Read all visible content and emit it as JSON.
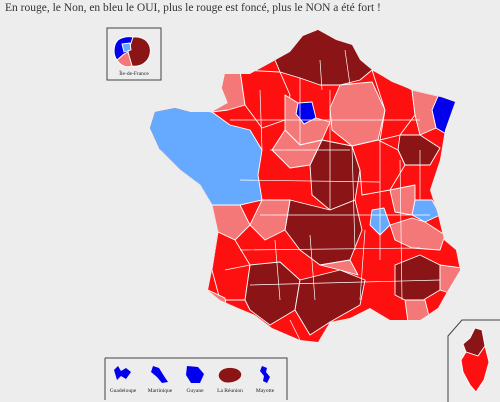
{
  "caption": "En rouge, le Non, en bleu le OUI, plus le rouge est foncé, plus le NON a été fort !",
  "colors": {
    "non_strong": "#8b1516",
    "non_medium": "#ff1010",
    "non_light": "#f57878",
    "oui_strong": "#0000ee",
    "oui_light": "#66aaff",
    "background": "#ededed",
    "border": "#ffffff"
  },
  "insets": {
    "ile_de_france": {
      "label": "Île-de-France"
    },
    "overseas": [
      {
        "label": "Guadeloupe"
      },
      {
        "label": "Martinique"
      },
      {
        "label": "Guyane"
      },
      {
        "label": "La Réunion"
      },
      {
        "label": "Mayotte"
      }
    ],
    "corse": {
      "label": ""
    }
  }
}
